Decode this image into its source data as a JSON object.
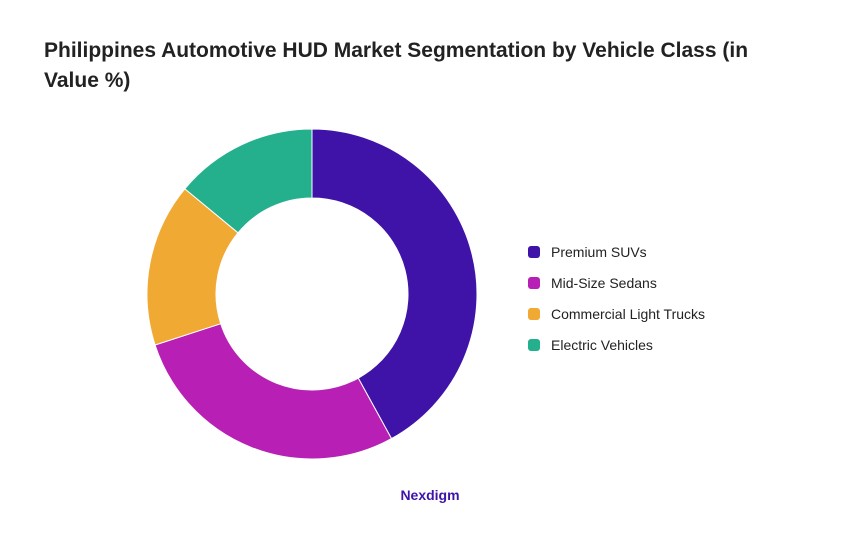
{
  "title": "Philippines Automotive HUD Market Segmentation by Vehicle Class (in Value %)",
  "brand": {
    "label": "Nexdigm",
    "color": "#3f13a8"
  },
  "chart_data": {
    "type": "pie",
    "title": "Philippines Automotive HUD Market Segmentation by Vehicle Class (in Value %)",
    "donut": true,
    "legend_position": "right",
    "unit": "%",
    "categories": [
      "Premium SUVs",
      "Mid-Size Sedans",
      "Commercial Light Trucks",
      "Electric Vehicles"
    ],
    "values": [
      42,
      28,
      16,
      14
    ],
    "colors": [
      "#3f13a8",
      "#b81fb4",
      "#f0aa33",
      "#24b08c"
    ]
  }
}
